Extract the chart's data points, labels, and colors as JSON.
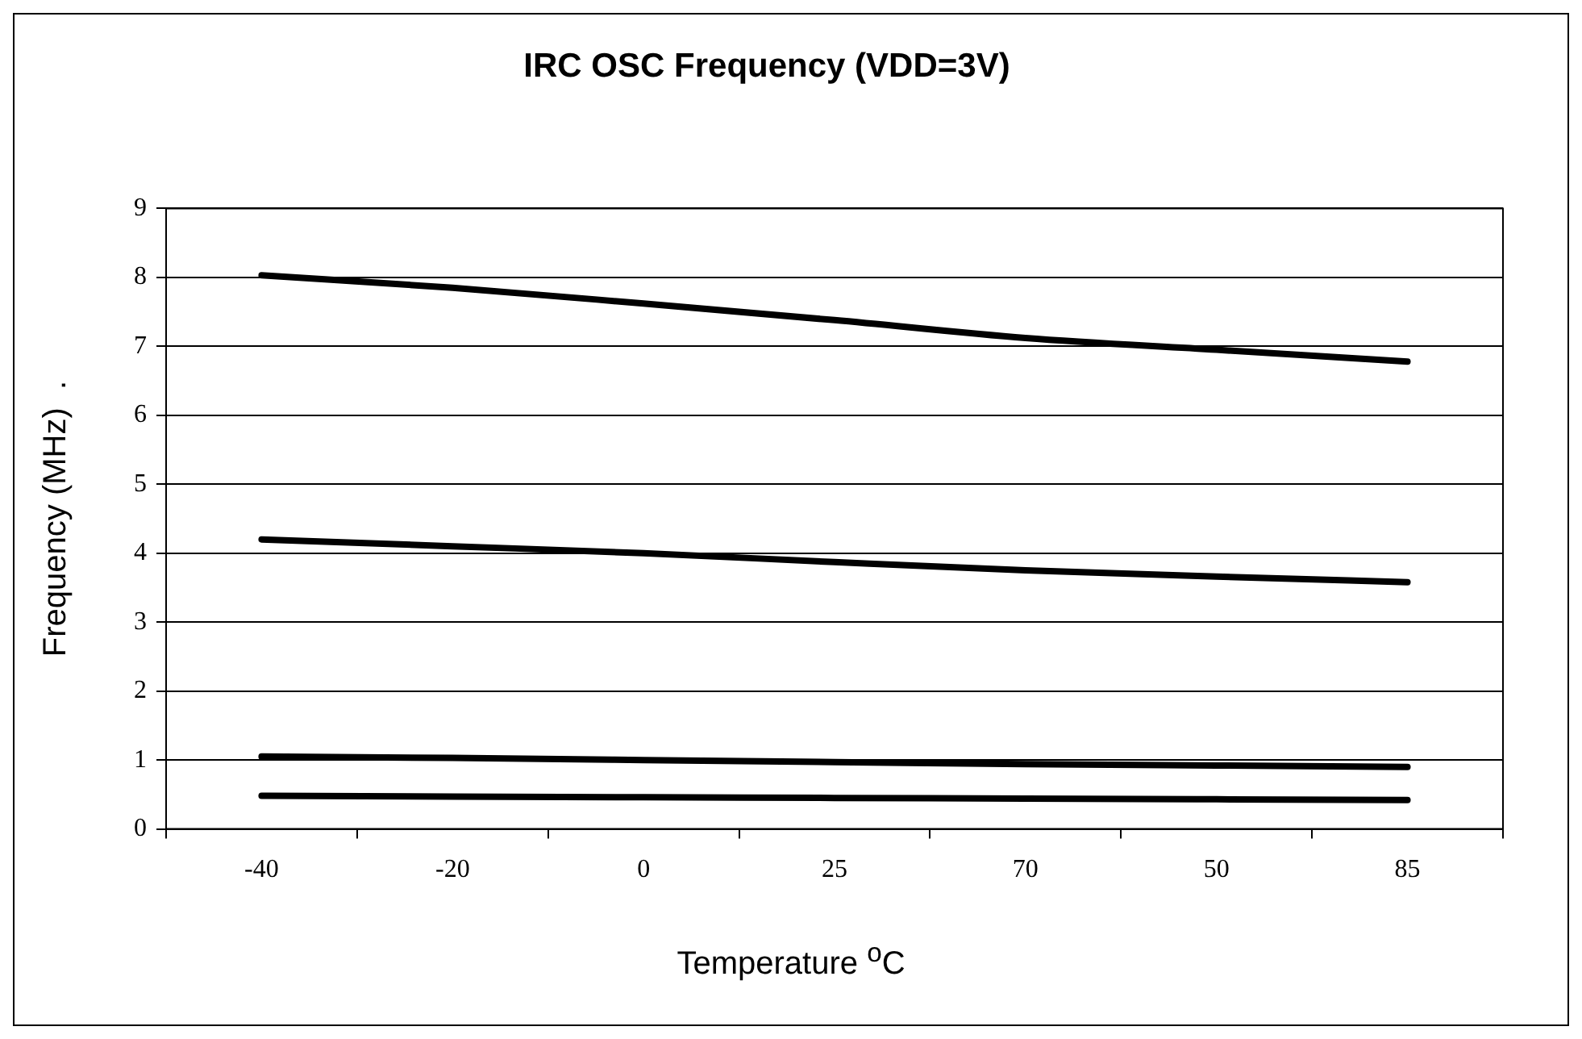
{
  "chart_data": {
    "type": "line",
    "title": "IRC OSC Frequency (VDD=3V)",
    "xlabel": "Temperature $^{o}$C",
    "ylabel": "Frequency (MHz)  .",
    "categories": [
      "-40",
      "-20",
      "0",
      "25",
      "70",
      "50",
      "85"
    ],
    "series": [
      {
        "color": "#000000",
        "values": [
          8.03,
          7.85,
          7.62,
          7.38,
          7.12,
          6.95,
          6.78
        ]
      },
      {
        "color": "#000000",
        "values": [
          4.2,
          4.1,
          4.0,
          3.87,
          3.75,
          3.66,
          3.58
        ]
      },
      {
        "color": "#000000",
        "values": [
          1.05,
          1.03,
          1.0,
          0.97,
          0.94,
          0.92,
          0.9
        ]
      },
      {
        "color": "#000000",
        "values": [
          0.48,
          0.47,
          0.46,
          0.45,
          0.44,
          0.43,
          0.42
        ]
      }
    ],
    "ylim": [
      0,
      9
    ],
    "yticks": [
      0,
      1,
      2,
      3,
      4,
      5,
      6,
      7,
      8,
      9
    ],
    "grid": "y",
    "legend": false,
    "marker": "none",
    "line_style": "solid"
  }
}
